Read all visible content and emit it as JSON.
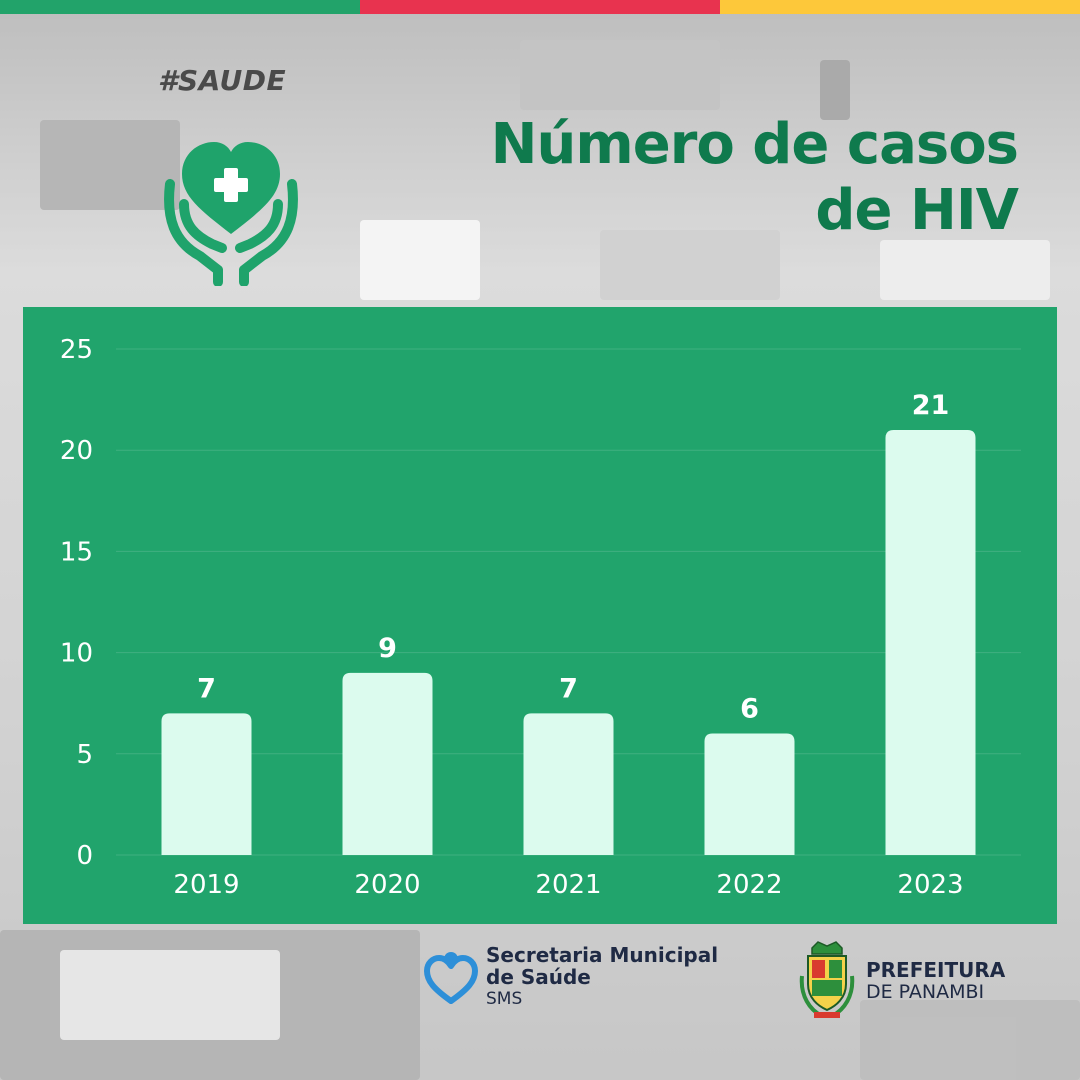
{
  "hashtag": "#SAUDE",
  "title_line1": "Número de casos",
  "title_line2": "de HIV",
  "colors": {
    "panel": "#21a46c",
    "bar": "#dcfbee",
    "title": "#0f7a4d",
    "stripe": [
      "#22a36a",
      "#e8334f",
      "#fdc83a"
    ]
  },
  "chart_data": {
    "type": "bar",
    "title": "Número de casos de HIV",
    "categories": [
      "2019",
      "2020",
      "2021",
      "2022",
      "2023"
    ],
    "values": [
      7,
      9,
      7,
      6,
      21
    ],
    "ylim": [
      0,
      25
    ],
    "yticks": [
      "0",
      "5",
      "10",
      "15",
      "20",
      "25"
    ],
    "grid": true,
    "xlabel": "",
    "ylabel": ""
  },
  "footer": {
    "sms_line1": "Secretaria Municipal",
    "sms_line2": "de Saúde",
    "sms_line3": "SMS",
    "pref_line1": "PREFEITURA",
    "pref_line2": "DE PANAMBI"
  }
}
